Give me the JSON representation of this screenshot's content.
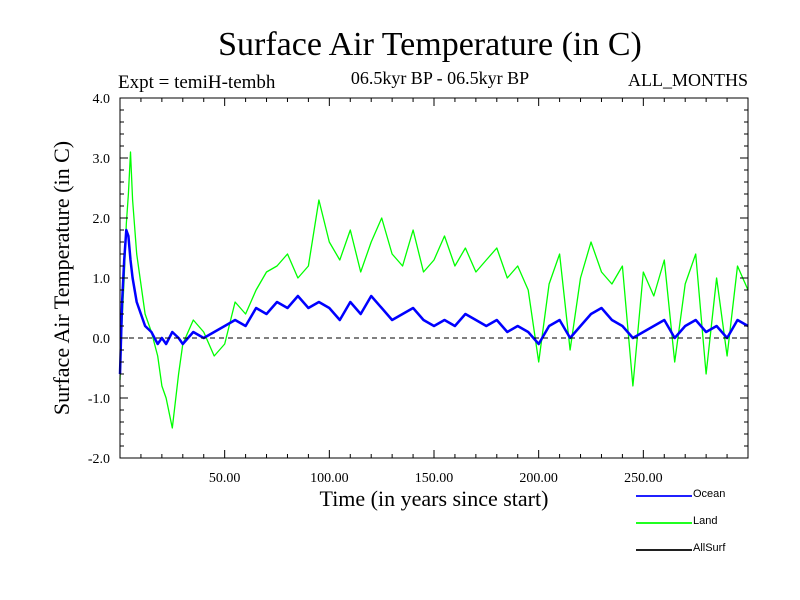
{
  "chart_data": {
    "type": "line",
    "title": "Surface Air Temperature (in C)",
    "expt_label": "Expt = temiH-tembh",
    "period_label": "06.5kyr BP - 06.5kyr BP",
    "months_label": "ALL_MONTHS",
    "xlabel": "Time (in years since start)",
    "ylabel": "Surface Air Temperature (in C)",
    "xlim": [
      0,
      300
    ],
    "ylim": [
      -2.0,
      4.0
    ],
    "xticks": [
      50,
      100,
      150,
      200,
      250
    ],
    "xtick_labels": [
      "50.00",
      "100.00",
      "150.00",
      "200.00",
      "250.00"
    ],
    "yticks": [
      -2,
      -1,
      0,
      1,
      2,
      3,
      4
    ],
    "ytick_labels": [
      "-2.0",
      "-1.0",
      "0.0",
      "1.0",
      "2.0",
      "3.0",
      "4.0"
    ],
    "zero_line": 0.0,
    "legend_position": "bottom-right outside",
    "series": [
      {
        "name": "Land",
        "color": "#00ff00",
        "x": [
          0,
          1,
          2,
          3,
          4,
          5,
          6,
          8,
          10,
          12,
          15,
          18,
          20,
          22,
          25,
          28,
          30,
          35,
          40,
          45,
          50,
          55,
          60,
          65,
          70,
          75,
          80,
          85,
          90,
          95,
          100,
          105,
          110,
          115,
          120,
          125,
          130,
          135,
          140,
          145,
          150,
          155,
          160,
          165,
          170,
          175,
          180,
          185,
          190,
          195,
          200,
          205,
          210,
          215,
          220,
          225,
          230,
          235,
          240,
          245,
          250,
          255,
          260,
          265,
          270,
          275,
          280,
          285,
          290,
          295,
          300
        ],
        "values": [
          -0.7,
          0.3,
          1.0,
          1.9,
          2.4,
          3.1,
          2.3,
          1.4,
          0.9,
          0.4,
          0.1,
          -0.3,
          -0.8,
          -1.0,
          -1.5,
          -0.6,
          -0.1,
          0.3,
          0.1,
          -0.3,
          -0.1,
          0.6,
          0.4,
          0.8,
          1.1,
          1.2,
          1.4,
          1.0,
          1.2,
          2.3,
          1.6,
          1.3,
          1.8,
          1.1,
          1.6,
          2.0,
          1.4,
          1.2,
          1.8,
          1.1,
          1.3,
          1.7,
          1.2,
          1.5,
          1.1,
          1.3,
          1.5,
          1.0,
          1.2,
          0.8,
          -0.4,
          0.9,
          1.4,
          -0.2,
          1.0,
          1.6,
          1.1,
          0.9,
          1.2,
          -0.8,
          1.1,
          0.7,
          1.3,
          -0.4,
          0.9,
          1.4,
          -0.6,
          1.0,
          -0.3,
          1.2,
          0.8
        ]
      },
      {
        "name": "Ocean",
        "color": "#0000ff",
        "x": [
          0,
          1,
          2,
          3,
          4,
          5,
          6,
          8,
          10,
          12,
          15,
          18,
          20,
          22,
          25,
          28,
          30,
          35,
          40,
          45,
          50,
          55,
          60,
          65,
          70,
          75,
          80,
          85,
          90,
          95,
          100,
          105,
          110,
          115,
          120,
          125,
          130,
          135,
          140,
          145,
          150,
          155,
          160,
          165,
          170,
          175,
          180,
          185,
          190,
          195,
          200,
          205,
          210,
          215,
          220,
          225,
          230,
          235,
          240,
          245,
          250,
          255,
          260,
          265,
          270,
          275,
          280,
          285,
          290,
          295,
          300
        ],
        "values": [
          -0.6,
          0.6,
          1.3,
          1.8,
          1.7,
          1.3,
          1.0,
          0.6,
          0.4,
          0.2,
          0.1,
          -0.1,
          0.0,
          -0.1,
          0.1,
          0.0,
          -0.1,
          0.1,
          0.0,
          0.1,
          0.2,
          0.3,
          0.2,
          0.5,
          0.4,
          0.6,
          0.5,
          0.7,
          0.5,
          0.6,
          0.5,
          0.3,
          0.6,
          0.4,
          0.7,
          0.5,
          0.3,
          0.4,
          0.5,
          0.3,
          0.2,
          0.3,
          0.2,
          0.4,
          0.3,
          0.2,
          0.3,
          0.1,
          0.2,
          0.1,
          -0.1,
          0.2,
          0.3,
          0.0,
          0.2,
          0.4,
          0.5,
          0.3,
          0.2,
          0.0,
          0.1,
          0.2,
          0.3,
          0.0,
          0.2,
          0.3,
          0.1,
          0.2,
          0.0,
          0.3,
          0.2
        ]
      },
      {
        "name": "AllSurf",
        "color": "#000000",
        "x": [],
        "values": []
      }
    ]
  }
}
